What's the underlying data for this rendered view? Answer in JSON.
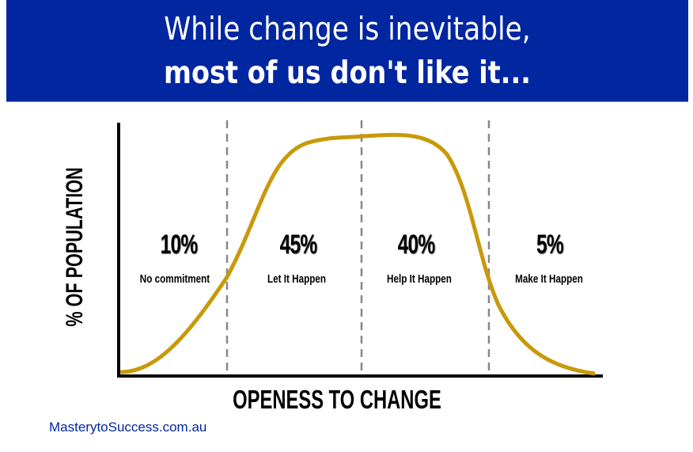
{
  "header": {
    "line1": "While change is inevitable,",
    "line2": "most of us don't like it..."
  },
  "chart_data": {
    "type": "area",
    "xlabel": "OPENESS TO CHANGE",
    "ylabel": "% OF POPULATION",
    "segments": [
      {
        "percent": "10%",
        "label": "No commitment"
      },
      {
        "percent": "45%",
        "label": "Let It Happen"
      },
      {
        "percent": "40%",
        "label": "Help It Happen"
      },
      {
        "percent": "5%",
        "label": "Make It Happen"
      }
    ],
    "curve_color": "#c8990a",
    "divider_style": "dashed"
  },
  "footer": {
    "brand": "MasterytoSuccess.com.au"
  },
  "colors": {
    "banner": "#0026a0",
    "curve": "#c8990a",
    "brand_text": "#0026a0"
  }
}
